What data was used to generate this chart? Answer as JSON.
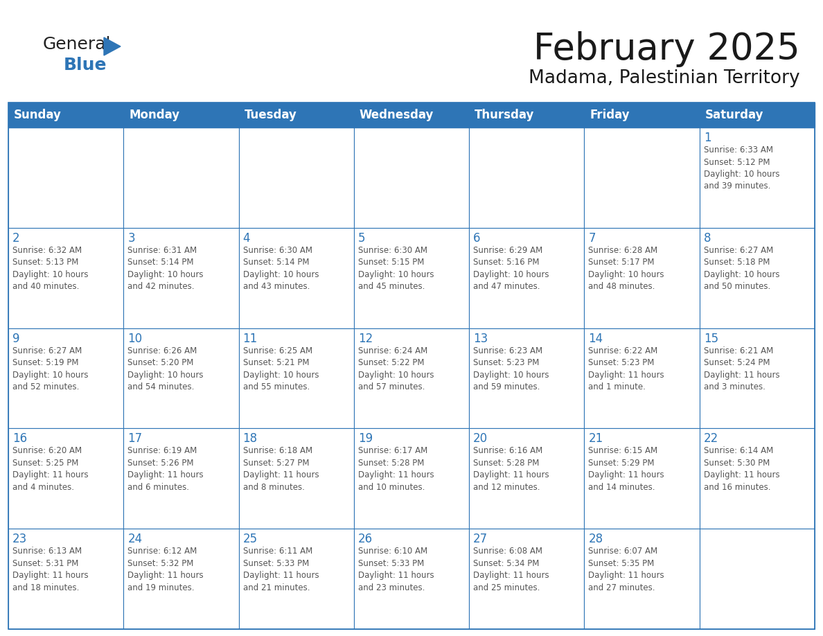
{
  "title": "February 2025",
  "subtitle": "Madama, Palestinian Territory",
  "header_bg": "#2E75B6",
  "header_text_color": "#FFFFFF",
  "cell_bg": "#FFFFFF",
  "cell_border_color": "#2E75B6",
  "day_number_color": "#2E75B6",
  "cell_text_color": "#555555",
  "days_of_week": [
    "Sunday",
    "Monday",
    "Tuesday",
    "Wednesday",
    "Thursday",
    "Friday",
    "Saturday"
  ],
  "weeks": [
    [
      {
        "day": "",
        "info": ""
      },
      {
        "day": "",
        "info": ""
      },
      {
        "day": "",
        "info": ""
      },
      {
        "day": "",
        "info": ""
      },
      {
        "day": "",
        "info": ""
      },
      {
        "day": "",
        "info": ""
      },
      {
        "day": "1",
        "info": "Sunrise: 6:33 AM\nSunset: 5:12 PM\nDaylight: 10 hours\nand 39 minutes."
      }
    ],
    [
      {
        "day": "2",
        "info": "Sunrise: 6:32 AM\nSunset: 5:13 PM\nDaylight: 10 hours\nand 40 minutes."
      },
      {
        "day": "3",
        "info": "Sunrise: 6:31 AM\nSunset: 5:14 PM\nDaylight: 10 hours\nand 42 minutes."
      },
      {
        "day": "4",
        "info": "Sunrise: 6:30 AM\nSunset: 5:14 PM\nDaylight: 10 hours\nand 43 minutes."
      },
      {
        "day": "5",
        "info": "Sunrise: 6:30 AM\nSunset: 5:15 PM\nDaylight: 10 hours\nand 45 minutes."
      },
      {
        "day": "6",
        "info": "Sunrise: 6:29 AM\nSunset: 5:16 PM\nDaylight: 10 hours\nand 47 minutes."
      },
      {
        "day": "7",
        "info": "Sunrise: 6:28 AM\nSunset: 5:17 PM\nDaylight: 10 hours\nand 48 minutes."
      },
      {
        "day": "8",
        "info": "Sunrise: 6:27 AM\nSunset: 5:18 PM\nDaylight: 10 hours\nand 50 minutes."
      }
    ],
    [
      {
        "day": "9",
        "info": "Sunrise: 6:27 AM\nSunset: 5:19 PM\nDaylight: 10 hours\nand 52 minutes."
      },
      {
        "day": "10",
        "info": "Sunrise: 6:26 AM\nSunset: 5:20 PM\nDaylight: 10 hours\nand 54 minutes."
      },
      {
        "day": "11",
        "info": "Sunrise: 6:25 AM\nSunset: 5:21 PM\nDaylight: 10 hours\nand 55 minutes."
      },
      {
        "day": "12",
        "info": "Sunrise: 6:24 AM\nSunset: 5:22 PM\nDaylight: 10 hours\nand 57 minutes."
      },
      {
        "day": "13",
        "info": "Sunrise: 6:23 AM\nSunset: 5:23 PM\nDaylight: 10 hours\nand 59 minutes."
      },
      {
        "day": "14",
        "info": "Sunrise: 6:22 AM\nSunset: 5:23 PM\nDaylight: 11 hours\nand 1 minute."
      },
      {
        "day": "15",
        "info": "Sunrise: 6:21 AM\nSunset: 5:24 PM\nDaylight: 11 hours\nand 3 minutes."
      }
    ],
    [
      {
        "day": "16",
        "info": "Sunrise: 6:20 AM\nSunset: 5:25 PM\nDaylight: 11 hours\nand 4 minutes."
      },
      {
        "day": "17",
        "info": "Sunrise: 6:19 AM\nSunset: 5:26 PM\nDaylight: 11 hours\nand 6 minutes."
      },
      {
        "day": "18",
        "info": "Sunrise: 6:18 AM\nSunset: 5:27 PM\nDaylight: 11 hours\nand 8 minutes."
      },
      {
        "day": "19",
        "info": "Sunrise: 6:17 AM\nSunset: 5:28 PM\nDaylight: 11 hours\nand 10 minutes."
      },
      {
        "day": "20",
        "info": "Sunrise: 6:16 AM\nSunset: 5:28 PM\nDaylight: 11 hours\nand 12 minutes."
      },
      {
        "day": "21",
        "info": "Sunrise: 6:15 AM\nSunset: 5:29 PM\nDaylight: 11 hours\nand 14 minutes."
      },
      {
        "day": "22",
        "info": "Sunrise: 6:14 AM\nSunset: 5:30 PM\nDaylight: 11 hours\nand 16 minutes."
      }
    ],
    [
      {
        "day": "23",
        "info": "Sunrise: 6:13 AM\nSunset: 5:31 PM\nDaylight: 11 hours\nand 18 minutes."
      },
      {
        "day": "24",
        "info": "Sunrise: 6:12 AM\nSunset: 5:32 PM\nDaylight: 11 hours\nand 19 minutes."
      },
      {
        "day": "25",
        "info": "Sunrise: 6:11 AM\nSunset: 5:33 PM\nDaylight: 11 hours\nand 21 minutes."
      },
      {
        "day": "26",
        "info": "Sunrise: 6:10 AM\nSunset: 5:33 PM\nDaylight: 11 hours\nand 23 minutes."
      },
      {
        "day": "27",
        "info": "Sunrise: 6:08 AM\nSunset: 5:34 PM\nDaylight: 11 hours\nand 25 minutes."
      },
      {
        "day": "28",
        "info": "Sunrise: 6:07 AM\nSunset: 5:35 PM\nDaylight: 11 hours\nand 27 minutes."
      },
      {
        "day": "",
        "info": ""
      }
    ]
  ],
  "logo_general_color": "#222222",
  "logo_blue_color": "#2E75B6",
  "title_fontsize": 38,
  "subtitle_fontsize": 19,
  "header_fontsize": 12,
  "day_number_fontsize": 12,
  "cell_text_fontsize": 8.5
}
